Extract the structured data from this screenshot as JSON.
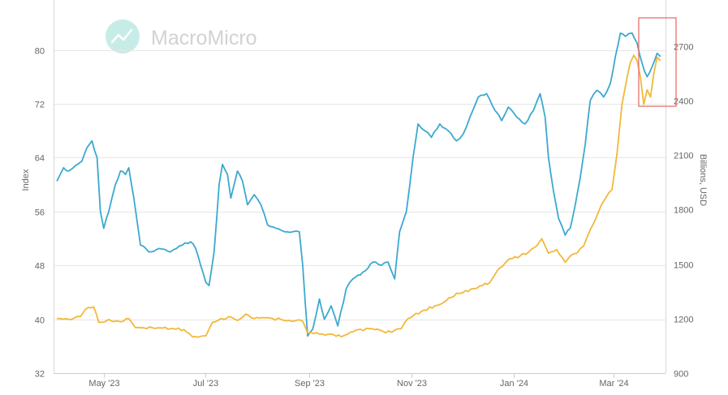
{
  "watermark": {
    "brand": "MacroMicro"
  },
  "chart_data": {
    "type": "line",
    "title": "",
    "left_axis": {
      "label": "Index",
      "ticks": [
        32,
        40,
        48,
        56,
        64,
        72,
        80
      ],
      "range": [
        32,
        85
      ]
    },
    "right_axis": {
      "label": "Billions, USD",
      "ticks": [
        900,
        1200,
        1500,
        1800,
        2100,
        2400,
        2700
      ],
      "range": [
        900,
        2865
      ]
    },
    "x_axis": {
      "range": [
        "2023-04-01",
        "2024-04-01"
      ],
      "ticks": [
        {
          "label": "May '23",
          "date": "2023-05-01"
        },
        {
          "label": "Jul '23",
          "date": "2023-07-01"
        },
        {
          "label": "Sep '23",
          "date": "2023-09-01"
        },
        {
          "label": "Nov '23",
          "date": "2023-11-01"
        },
        {
          "label": "Jan '24",
          "date": "2024-01-01"
        },
        {
          "label": "Mar '24",
          "date": "2024-03-01"
        }
      ]
    },
    "grid": true,
    "legend": "none",
    "highlight_box": {
      "from": "2024-03-16",
      "to": "2024-04-01"
    },
    "series": [
      {
        "axis": "left",
        "color": "#3ba9cf",
        "points": [
          [
            "2023-04-03",
            60.5
          ],
          [
            "2023-04-05",
            61.5
          ],
          [
            "2023-04-07",
            62.5
          ],
          [
            "2023-04-10",
            62.0
          ],
          [
            "2023-04-14",
            62.8
          ],
          [
            "2023-04-18",
            63.5
          ],
          [
            "2023-04-21",
            65.5
          ],
          [
            "2023-04-24",
            66.5
          ],
          [
            "2023-04-27",
            64.0
          ],
          [
            "2023-04-29",
            56.0
          ],
          [
            "2023-05-01",
            53.5
          ],
          [
            "2023-05-04",
            56.0
          ],
          [
            "2023-05-08",
            60.0
          ],
          [
            "2023-05-11",
            62.0
          ],
          [
            "2023-05-14",
            61.5
          ],
          [
            "2023-05-16",
            62.5
          ],
          [
            "2023-05-19",
            58.0
          ],
          [
            "2023-05-23",
            51.0
          ],
          [
            "2023-05-28",
            50.0
          ],
          [
            "2023-06-03",
            50.5
          ],
          [
            "2023-06-10",
            50.0
          ],
          [
            "2023-06-17",
            51.0
          ],
          [
            "2023-06-22",
            51.5
          ],
          [
            "2023-06-25",
            50.5
          ],
          [
            "2023-06-28",
            48.0
          ],
          [
            "2023-07-01",
            45.5
          ],
          [
            "2023-07-03",
            45.0
          ],
          [
            "2023-07-06",
            50.0
          ],
          [
            "2023-07-09",
            60.0
          ],
          [
            "2023-07-11",
            63.0
          ],
          [
            "2023-07-14",
            61.5
          ],
          [
            "2023-07-16",
            58.0
          ],
          [
            "2023-07-18",
            60.0
          ],
          [
            "2023-07-20",
            62.0
          ],
          [
            "2023-07-23",
            60.5
          ],
          [
            "2023-07-26",
            57.0
          ],
          [
            "2023-07-30",
            58.5
          ],
          [
            "2023-08-03",
            57.0
          ],
          [
            "2023-08-07",
            54.0
          ],
          [
            "2023-08-12",
            53.5
          ],
          [
            "2023-08-17",
            53.0
          ],
          [
            "2023-08-22",
            53.0
          ],
          [
            "2023-08-26",
            53.0
          ],
          [
            "2023-08-28",
            48.0
          ],
          [
            "2023-08-31",
            37.5
          ],
          [
            "2023-09-03",
            38.5
          ],
          [
            "2023-09-07",
            43.0
          ],
          [
            "2023-09-10",
            40.0
          ],
          [
            "2023-09-14",
            42.0
          ],
          [
            "2023-09-18",
            39.0
          ],
          [
            "2023-09-23",
            44.5
          ],
          [
            "2023-09-27",
            46.0
          ],
          [
            "2023-10-03",
            47.0
          ],
          [
            "2023-10-09",
            48.5
          ],
          [
            "2023-10-14",
            48.0
          ],
          [
            "2023-10-18",
            48.5
          ],
          [
            "2023-10-22",
            46.0
          ],
          [
            "2023-10-25",
            53.0
          ],
          [
            "2023-10-29",
            56.0
          ],
          [
            "2023-11-02",
            64.0
          ],
          [
            "2023-11-05",
            69.0
          ],
          [
            "2023-11-09",
            68.0
          ],
          [
            "2023-11-13",
            67.0
          ],
          [
            "2023-11-18",
            69.0
          ],
          [
            "2023-11-23",
            68.0
          ],
          [
            "2023-11-28",
            66.5
          ],
          [
            "2023-12-02",
            67.5
          ],
          [
            "2023-12-06",
            70.0
          ],
          [
            "2023-12-11",
            73.0
          ],
          [
            "2023-12-16",
            73.5
          ],
          [
            "2023-12-21",
            71.0
          ],
          [
            "2023-12-25",
            69.5
          ],
          [
            "2023-12-29",
            71.5
          ],
          [
            "2024-01-03",
            70.0
          ],
          [
            "2024-01-08",
            69.0
          ],
          [
            "2024-01-13",
            71.0
          ],
          [
            "2024-01-17",
            73.5
          ],
          [
            "2024-01-20",
            70.0
          ],
          [
            "2024-01-22",
            64.0
          ],
          [
            "2024-01-25",
            59.0
          ],
          [
            "2024-01-28",
            55.0
          ],
          [
            "2024-02-01",
            52.5
          ],
          [
            "2024-02-04",
            53.5
          ],
          [
            "2024-02-07",
            57.0
          ],
          [
            "2024-02-10",
            61.0
          ],
          [
            "2024-02-13",
            66.0
          ],
          [
            "2024-02-16",
            72.5
          ],
          [
            "2024-02-20",
            74.0
          ],
          [
            "2024-02-24",
            73.0
          ],
          [
            "2024-02-28",
            75.0
          ],
          [
            "2024-03-02",
            79.0
          ],
          [
            "2024-03-05",
            82.5
          ],
          [
            "2024-03-08",
            82.0
          ],
          [
            "2024-03-12",
            82.5
          ],
          [
            "2024-03-15",
            81.0
          ],
          [
            "2024-03-18",
            78.0
          ],
          [
            "2024-03-21",
            76.0
          ],
          [
            "2024-03-24",
            77.5
          ],
          [
            "2024-03-27",
            79.5
          ],
          [
            "2024-03-29",
            79.0
          ]
        ]
      },
      {
        "axis": "right",
        "color": "#f2b83a",
        "points": [
          [
            "2023-04-03",
            1200
          ],
          [
            "2023-04-10",
            1195
          ],
          [
            "2023-04-17",
            1210
          ],
          [
            "2023-04-20",
            1250
          ],
          [
            "2023-04-25",
            1265
          ],
          [
            "2023-04-28",
            1180
          ],
          [
            "2023-05-04",
            1195
          ],
          [
            "2023-05-10",
            1185
          ],
          [
            "2023-05-16",
            1200
          ],
          [
            "2023-05-20",
            1150
          ],
          [
            "2023-05-30",
            1150
          ],
          [
            "2023-06-10",
            1145
          ],
          [
            "2023-06-18",
            1140
          ],
          [
            "2023-06-23",
            1100
          ],
          [
            "2023-07-01",
            1105
          ],
          [
            "2023-07-05",
            1180
          ],
          [
            "2023-07-10",
            1200
          ],
          [
            "2023-07-16",
            1210
          ],
          [
            "2023-07-20",
            1190
          ],
          [
            "2023-07-25",
            1225
          ],
          [
            "2023-07-30",
            1200
          ],
          [
            "2023-08-10",
            1200
          ],
          [
            "2023-08-20",
            1190
          ],
          [
            "2023-08-28",
            1185
          ],
          [
            "2023-08-31",
            1120
          ],
          [
            "2023-09-07",
            1115
          ],
          [
            "2023-09-14",
            1115
          ],
          [
            "2023-09-20",
            1100
          ],
          [
            "2023-09-24",
            1115
          ],
          [
            "2023-09-30",
            1140
          ],
          [
            "2023-10-10",
            1140
          ],
          [
            "2023-10-15",
            1130
          ],
          [
            "2023-10-20",
            1125
          ],
          [
            "2023-10-26",
            1145
          ],
          [
            "2023-10-30",
            1200
          ],
          [
            "2023-11-07",
            1240
          ],
          [
            "2023-11-15",
            1270
          ],
          [
            "2023-11-22",
            1300
          ],
          [
            "2023-11-28",
            1340
          ],
          [
            "2023-12-05",
            1350
          ],
          [
            "2023-12-12",
            1380
          ],
          [
            "2023-12-18",
            1400
          ],
          [
            "2023-12-24",
            1480
          ],
          [
            "2023-12-30",
            1530
          ],
          [
            "2024-01-05",
            1545
          ],
          [
            "2024-01-10",
            1565
          ],
          [
            "2024-01-15",
            1600
          ],
          [
            "2024-01-18",
            1640
          ],
          [
            "2024-01-22",
            1560
          ],
          [
            "2024-01-27",
            1580
          ],
          [
            "2024-02-01",
            1510
          ],
          [
            "2024-02-04",
            1545
          ],
          [
            "2024-02-08",
            1560
          ],
          [
            "2024-02-12",
            1600
          ],
          [
            "2024-02-16",
            1690
          ],
          [
            "2024-02-21",
            1790
          ],
          [
            "2024-02-25",
            1860
          ],
          [
            "2024-02-29",
            1910
          ],
          [
            "2024-03-03",
            2110
          ],
          [
            "2024-03-06",
            2380
          ],
          [
            "2024-03-08",
            2480
          ],
          [
            "2024-03-11",
            2610
          ],
          [
            "2024-03-13",
            2650
          ],
          [
            "2024-03-15",
            2620
          ],
          [
            "2024-03-17",
            2530
          ],
          [
            "2024-03-19",
            2380
          ],
          [
            "2024-03-21",
            2460
          ],
          [
            "2024-03-23",
            2420
          ],
          [
            "2024-03-25",
            2550
          ],
          [
            "2024-03-27",
            2640
          ],
          [
            "2024-03-29",
            2620
          ]
        ]
      }
    ]
  }
}
